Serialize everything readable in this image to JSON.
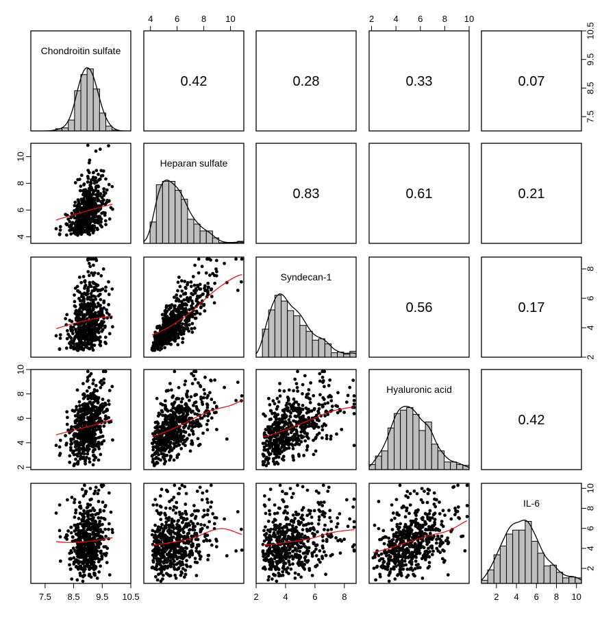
{
  "chart_data": {
    "type": "scatter",
    "title": "",
    "variables": [
      "Chondroitin sulfate",
      "Heparan sulfate",
      "Syndecan-1",
      "Hyaluronic acid",
      "IL-6"
    ],
    "ranges": [
      [
        7.0,
        10.5
      ],
      [
        3.5,
        11.0
      ],
      [
        2.0,
        8.8
      ],
      [
        1.8,
        10.0
      ],
      [
        0.5,
        10.5
      ]
    ],
    "axis_ticks": [
      {
        "values": [
          7.5,
          8.5,
          9.5,
          10.5
        ],
        "labels": [
          "7.5",
          "8.5",
          "9.5",
          "10.5"
        ]
      },
      {
        "values": [
          4,
          6,
          8,
          10
        ],
        "labels": [
          "4",
          "6",
          "8",
          "10"
        ]
      },
      {
        "values": [
          2,
          4,
          6,
          8
        ],
        "labels": [
          "2",
          "4",
          "6",
          "8"
        ]
      },
      {
        "values": [
          2,
          4,
          6,
          8,
          10
        ],
        "labels": [
          "2",
          "4",
          "6",
          "8",
          "10"
        ]
      },
      {
        "values": [
          2,
          4,
          6,
          8,
          10
        ],
        "labels": [
          "2",
          "4",
          "6",
          "8",
          "10"
        ]
      }
    ],
    "correlations": [
      {
        "row": 0,
        "col": 1,
        "value": "0.42"
      },
      {
        "row": 0,
        "col": 2,
        "value": "0.28"
      },
      {
        "row": 0,
        "col": 3,
        "value": "0.33"
      },
      {
        "row": 0,
        "col": 4,
        "value": "0.07"
      },
      {
        "row": 1,
        "col": 2,
        "value": "0.83"
      },
      {
        "row": 1,
        "col": 3,
        "value": "0.61"
      },
      {
        "row": 1,
        "col": 4,
        "value": "0.21"
      },
      {
        "row": 2,
        "col": 3,
        "value": "0.56"
      },
      {
        "row": 2,
        "col": 4,
        "value": "0.17"
      },
      {
        "row": 3,
        "col": 4,
        "value": "0.42"
      }
    ],
    "marginals": [
      {
        "mean": 9.0,
        "sd": 0.33,
        "skew": 0
      },
      {
        "mean": 6.0,
        "sd": 1.2,
        "skew": 1
      },
      {
        "mean": 4.5,
        "sd": 1.3,
        "skew": 1
      },
      {
        "mean": 5.3,
        "sd": 1.6,
        "skew": 0.5
      },
      {
        "mean": 4.8,
        "sd": 2.0,
        "skew": 0.6
      }
    ],
    "sample_size": 550,
    "point_color": "#000000",
    "smooth_color": "#ff0000",
    "hist_fill": "#bebebe",
    "grid": false
  }
}
